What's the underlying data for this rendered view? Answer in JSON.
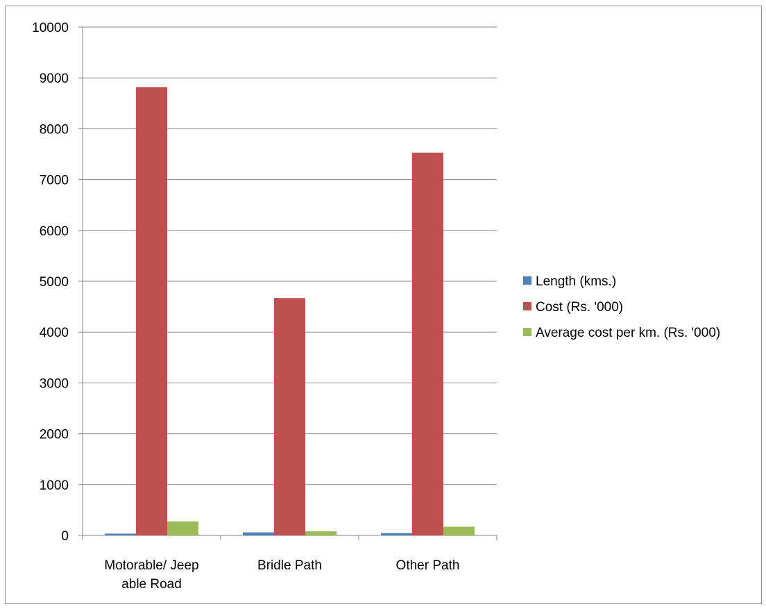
{
  "chart_data": {
    "type": "bar",
    "title": "",
    "xlabel": "",
    "ylabel": "",
    "categories": [
      [
        "Motorable/ Jeep",
        "able Road"
      ],
      [
        "Bridle Path"
      ],
      [
        "Other Path"
      ]
    ],
    "series": [
      {
        "name": "Length (kms.)",
        "color": "#4f81bd",
        "values": [
          35,
          60,
          45
        ]
      },
      {
        "name": "Cost (Rs. '000)",
        "color": "#c0504d",
        "values": [
          8820,
          4670,
          7530
        ]
      },
      {
        "name": "Average cost per km. (Rs. '000)",
        "color": "#9bbb59",
        "values": [
          275,
          80,
          170
        ]
      }
    ],
    "ylim": [
      0,
      10000
    ],
    "yticks": [
      0,
      1000,
      2000,
      3000,
      4000,
      5000,
      6000,
      7000,
      8000,
      9000,
      10000
    ],
    "grid": true,
    "legend_position": "right"
  }
}
